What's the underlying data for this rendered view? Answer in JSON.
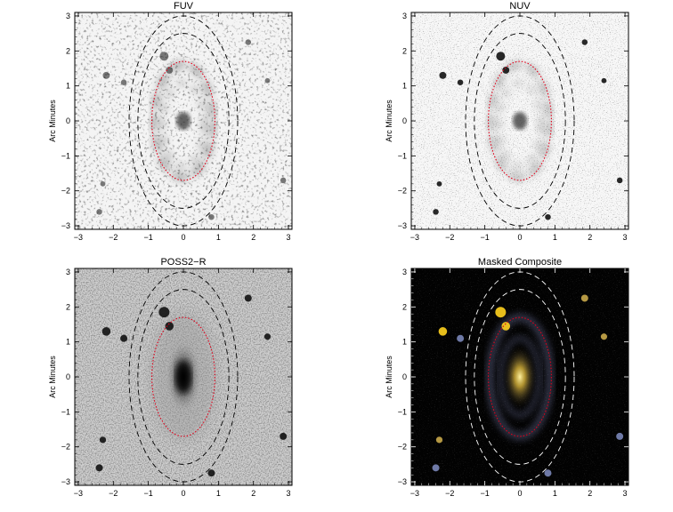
{
  "figure": {
    "panels": [
      {
        "id": "fuv",
        "title": "FUV",
        "ylabel": "Arc Minutes",
        "style": "light-speckle"
      },
      {
        "id": "nuv",
        "title": "NUV",
        "ylabel": "Arc Minutes",
        "style": "light-fine"
      },
      {
        "id": "poss",
        "title": "POSS2−R",
        "ylabel": "Arc Minutes",
        "style": "gray-optical"
      },
      {
        "id": "comp",
        "title": "Masked Composite",
        "ylabel": "Arc Minutes",
        "style": "dark-color"
      }
    ],
    "colors": {
      "inner_ellipse": "#e0001a",
      "outer_ellipse_dark": "#000000",
      "outer_ellipse_light": "#ffffff",
      "star_yellow": "#ffd21e",
      "arm_blue": "#8a92c8"
    }
  },
  "chart_data": {
    "type": "image-panels",
    "x_ticks": [
      "−3",
      "−2",
      "−1",
      "0",
      "1",
      "2",
      "3"
    ],
    "y_ticks": [
      "3",
      "2",
      "1",
      "0",
      "−1",
      "−2",
      "−3"
    ],
    "xlim": [
      -3.1,
      3.1
    ],
    "ylim": [
      -3.1,
      3.1
    ],
    "ellipses": [
      {
        "name": "inner",
        "center": [
          0,
          0
        ],
        "semi_x": 0.9,
        "semi_y": 1.7,
        "line": "dotted",
        "color": "red"
      },
      {
        "name": "outer1",
        "center": [
          0,
          0
        ],
        "semi_x": 1.3,
        "semi_y": 2.5,
        "line": "dashed"
      },
      {
        "name": "outer2",
        "center": [
          0,
          0
        ],
        "semi_x": 1.55,
        "semi_y": 3.0,
        "line": "dashed"
      }
    ],
    "bright_sources": [
      {
        "x": -0.55,
        "y": 1.85,
        "size": 1.0
      },
      {
        "x": -0.4,
        "y": 1.45,
        "size": 0.7
      },
      {
        "x": -2.2,
        "y": 1.3,
        "size": 0.7
      },
      {
        "x": -1.7,
        "y": 1.1,
        "size": 0.5
      },
      {
        "x": 1.85,
        "y": 2.25,
        "size": 0.5
      },
      {
        "x": -2.4,
        "y": -2.6,
        "size": 0.5
      },
      {
        "x": 2.4,
        "y": 1.15,
        "size": 0.4
      },
      {
        "x": 2.85,
        "y": -1.7,
        "size": 0.5
      },
      {
        "x": -2.3,
        "y": -1.8,
        "size": 0.4
      },
      {
        "x": 0.8,
        "y": -2.75,
        "size": 0.5
      }
    ]
  }
}
